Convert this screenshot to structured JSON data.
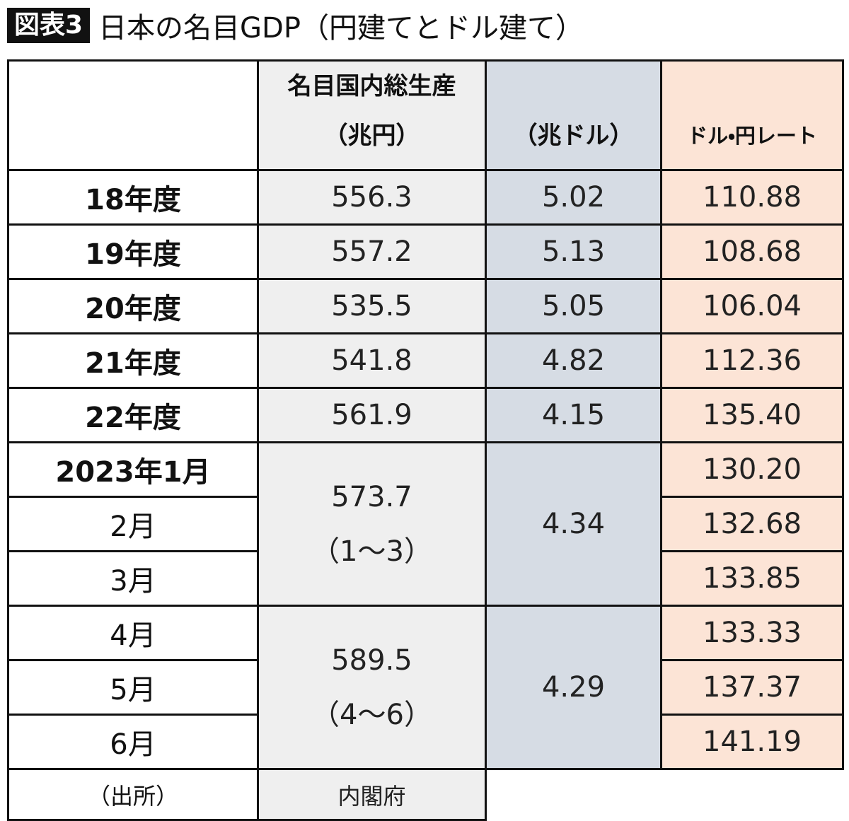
{
  "header": {
    "badge": "図表3",
    "title": "日本の名目GDP（円建てとドル建て）"
  },
  "table": {
    "columns": [
      [
        "名目国内総生産",
        "（兆円）"
      ],
      [
        "（兆ドル）"
      ],
      [
        "ドル・円レート"
      ]
    ],
    "rows": [
      {
        "label": "18年度",
        "yen": "556.3",
        "usd": "5.02",
        "rate": "110.88"
      },
      {
        "label": "19年度",
        "yen": "557.2",
        "usd": "5.13",
        "rate": "108.68"
      },
      {
        "label": "20年度",
        "yen": "535.5",
        "usd": "5.05",
        "rate": "106.04"
      },
      {
        "label": "21年度",
        "yen": "541.8",
        "usd": "4.82",
        "rate": "112.36"
      },
      {
        "label": "22年度",
        "yen": "561.9",
        "usd": "4.15",
        "rate": "135.40"
      }
    ],
    "quarters": [
      {
        "yen": "573.7",
        "period": "（1～3）",
        "usd": "4.34",
        "months": [
          {
            "label": "2023年1月",
            "rate": "130.20"
          },
          {
            "label": "2月",
            "rate": "132.68"
          },
          {
            "label": "3月",
            "rate": "133.85"
          }
        ]
      },
      {
        "yen": "589.5",
        "period": "（4～6）",
        "usd": "4.29",
        "months": [
          {
            "label": "4月",
            "rate": "133.33"
          },
          {
            "label": "5月",
            "rate": "137.37"
          },
          {
            "label": "6月",
            "rate": "141.19"
          }
        ]
      }
    ],
    "source": {
      "label": "（出所）",
      "value": "内閣府"
    }
  }
}
